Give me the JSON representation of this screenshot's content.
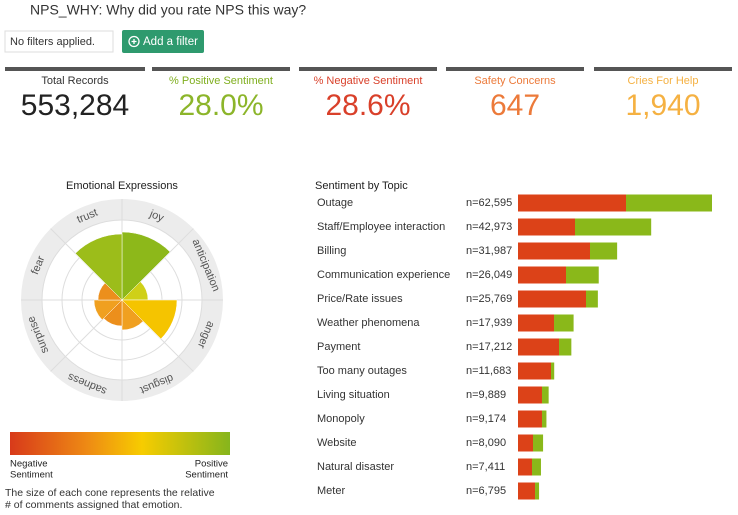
{
  "header": {
    "title": "NPS_WHY: Why did you rate NPS this way?",
    "filter_status": "No filters applied.",
    "filter_button": "Add a filter"
  },
  "kpis": [
    {
      "label": "Total Records",
      "value": "553,284",
      "label_color": "#333333",
      "value_color": "#222222"
    },
    {
      "label": "% Positive Sentiment",
      "value": "28.0%",
      "label_color": "#7fae1e",
      "value_color": "#8cb52a"
    },
    {
      "label": "% Negative Sentiment",
      "value": "28.6%",
      "label_color": "#d9402a",
      "value_color": "#d9402a"
    },
    {
      "label": "Safety Concerns",
      "value": "647",
      "label_color": "#ec7a3a",
      "value_color": "#ec7a3a"
    },
    {
      "label": "Cries For Help",
      "value": "1,940",
      "label_color": "#f5b142",
      "value_color": "#f5b142"
    }
  ],
  "chart_data": [
    {
      "type": "radial",
      "title": "Emotional Expressions",
      "categories": [
        "joy",
        "anticipation",
        "anger",
        "disgust",
        "sadness",
        "surprise",
        "fear",
        "trust"
      ],
      "values": [
        68,
        26,
        55,
        30,
        26,
        28,
        24,
        66
      ],
      "colors": [
        "#8db81a",
        "#cfd018",
        "#f5c400",
        "#f0a020",
        "#ec8f1c",
        "#f0a020",
        "#ec8f1c",
        "#9cbd1a"
      ],
      "legend": {
        "low": [
          "Negative",
          "Sentiment"
        ],
        "high": [
          "Positive",
          "Sentiment"
        ]
      },
      "note": [
        "The size of each cone represents the relative",
        "# of comments assigned that emotion."
      ]
    },
    {
      "type": "bar",
      "orientation": "horizontal",
      "stacked": true,
      "title": "Sentiment by Topic",
      "categories": [
        "Outage",
        "Staff/Employee interaction",
        "Billing",
        "Communication experience",
        "Price/Rate issues",
        "Weather phenomena",
        "Payment",
        "Too many outages",
        "Living situation",
        "Monopoly",
        "Website",
        "Natural disaster",
        "Meter"
      ],
      "value_labels": [
        "n=62,595",
        "n=42,973",
        "n=31,987",
        "n=26,049",
        "n=25,769",
        "n=17,939",
        "n=17,212",
        "n=11,683",
        "n=9,889",
        "n=9,174",
        "n=8,090",
        "n=7,411",
        "n=6,795"
      ],
      "series": [
        {
          "color": "#dc4218",
          "values": [
            34850,
            18390,
            23230,
            15490,
            21940,
            11620,
            13230,
            10650,
            7740,
            7740,
            4840,
            4520,
            5490
          ]
        },
        {
          "color": "#8ab81a",
          "values": [
            27745,
            24583,
            8757,
            10559,
            3829,
            6319,
            3982,
            1033,
            2149,
            1434,
            3250,
            2891,
            1305
          ]
        }
      ]
    }
  ]
}
